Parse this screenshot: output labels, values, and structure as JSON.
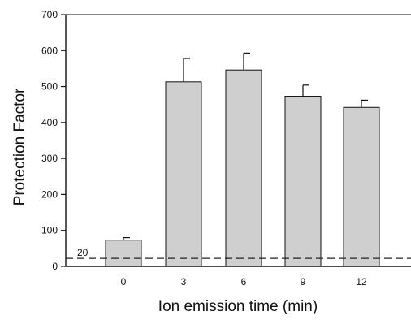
{
  "chart_data": {
    "type": "bar",
    "xlabel": "Ion emission time (min)",
    "ylabel": "Protection Factor",
    "categories": [
      "0",
      "3",
      "6",
      "9",
      "12"
    ],
    "values": [
      73,
      513,
      546,
      473,
      442
    ],
    "error_upper": [
      80,
      578,
      593,
      504,
      462
    ],
    "ylim": [
      0,
      700
    ],
    "yticks": [
      "0",
      "100",
      "200",
      "300",
      "400",
      "500",
      "600",
      "700"
    ],
    "reference_line": {
      "value": 20,
      "label": "20",
      "style": "dashed"
    },
    "bar_color": "#cfcfcf",
    "grid": false
  }
}
